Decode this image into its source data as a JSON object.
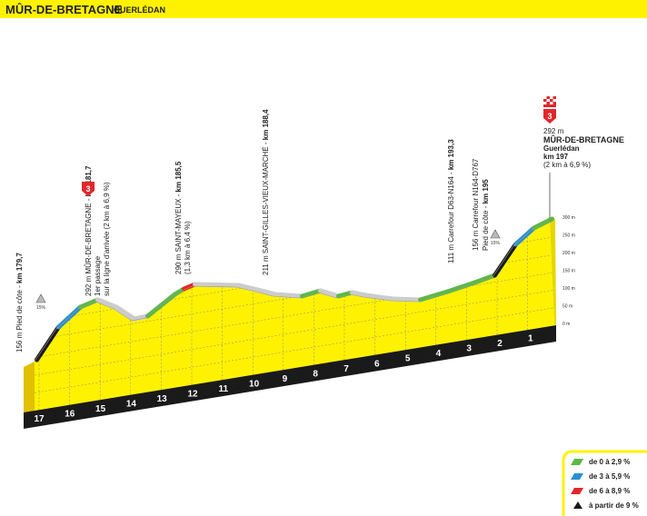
{
  "header": {
    "title": "MÛR-DE-BRETAGNE",
    "subtitle": "GUERLÉDAN"
  },
  "annotations": [
    {
      "lines": [
        [
          "156 m Pied de côte - ",
          "km 179,7"
        ]
      ]
    },
    {
      "lines": [
        [
          "292 m MÛR-DE-BRETAGNE - ",
          "km 181,7"
        ],
        [
          "1er passage",
          ""
        ],
        [
          "sur la ligne d'arrivée (2 km à 6,9 %)",
          ""
        ]
      ]
    },
    {
      "lines": [
        [
          "290 m SAINT-MAYEUX - ",
          "km 185,5"
        ],
        [
          "(1,3 km à 6,4 %)",
          ""
        ]
      ]
    },
    {
      "lines": [
        [
          "211 m SAINT-GILLES-VIEUX-MARCHÉ - ",
          "km 188,4"
        ]
      ]
    },
    {
      "lines": [
        [
          "111 m Carrefour D63-N164 - ",
          "km 193,3"
        ]
      ]
    },
    {
      "lines": [
        [
          "156 m Carrefour N164-D767",
          ""
        ],
        [
          "Pied de côte - ",
          "km 195"
        ]
      ]
    }
  ],
  "finish": {
    "altitude": "292 m",
    "name": "MÛR-DE-BRETAGNE",
    "place": "Guerlédan",
    "km": "km 197",
    "climb": "(2 km à 6,9 %)",
    "category": "3"
  },
  "climb_marker": {
    "category": "3"
  },
  "steep_markers": [
    "15%",
    "15%"
  ],
  "km_labels": [
    "17",
    "16",
    "15",
    "14",
    "13",
    "12",
    "11",
    "10",
    "9",
    "8",
    "7",
    "6",
    "5",
    "4",
    "3",
    "2",
    "1"
  ],
  "elevation_labels": [
    "0 m",
    "50 m",
    "100 m",
    "150 m",
    "200 m",
    "250 m",
    "300 m"
  ],
  "legend": [
    "de 0 à 2,9 %",
    "de 3 à 5,9 %",
    "de 6 à 8,9 %",
    "à partir de 9 %"
  ]
}
